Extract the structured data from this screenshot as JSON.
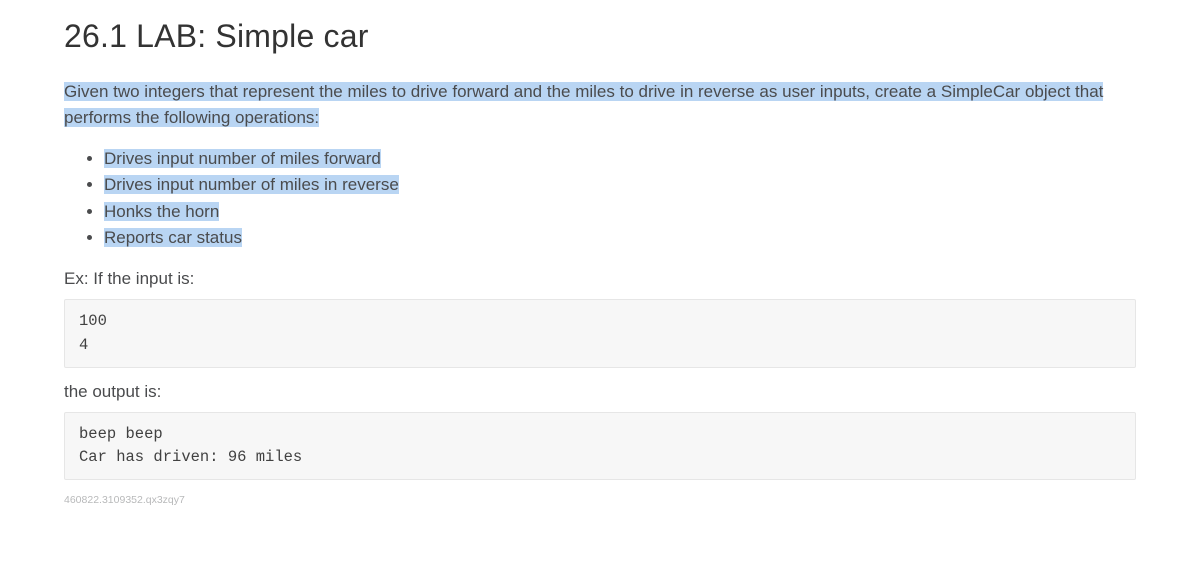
{
  "title": "26.1 LAB: Simple car",
  "intro": "Given two integers that represent the miles to drive forward and the miles to drive in reverse as user inputs, create a SimpleCar object that performs the following operations:",
  "bullets": {
    "b1": "Drives input number of miles forward",
    "b2": "Drives input number of miles in reverse",
    "b3": "Honks the horn",
    "b4": "Reports car status"
  },
  "example_intro": "Ex: If the input is:",
  "input_block": "100\n4",
  "output_intro": "the output is:",
  "output_block": "beep beep\nCar has driven: 96 miles",
  "footer_id": "460822.3109352.qx3zqy7",
  "highlight_color": "#b9d5f3",
  "codeblock_bg": "#f7f7f7",
  "codeblock_border": "#e6e6e6"
}
